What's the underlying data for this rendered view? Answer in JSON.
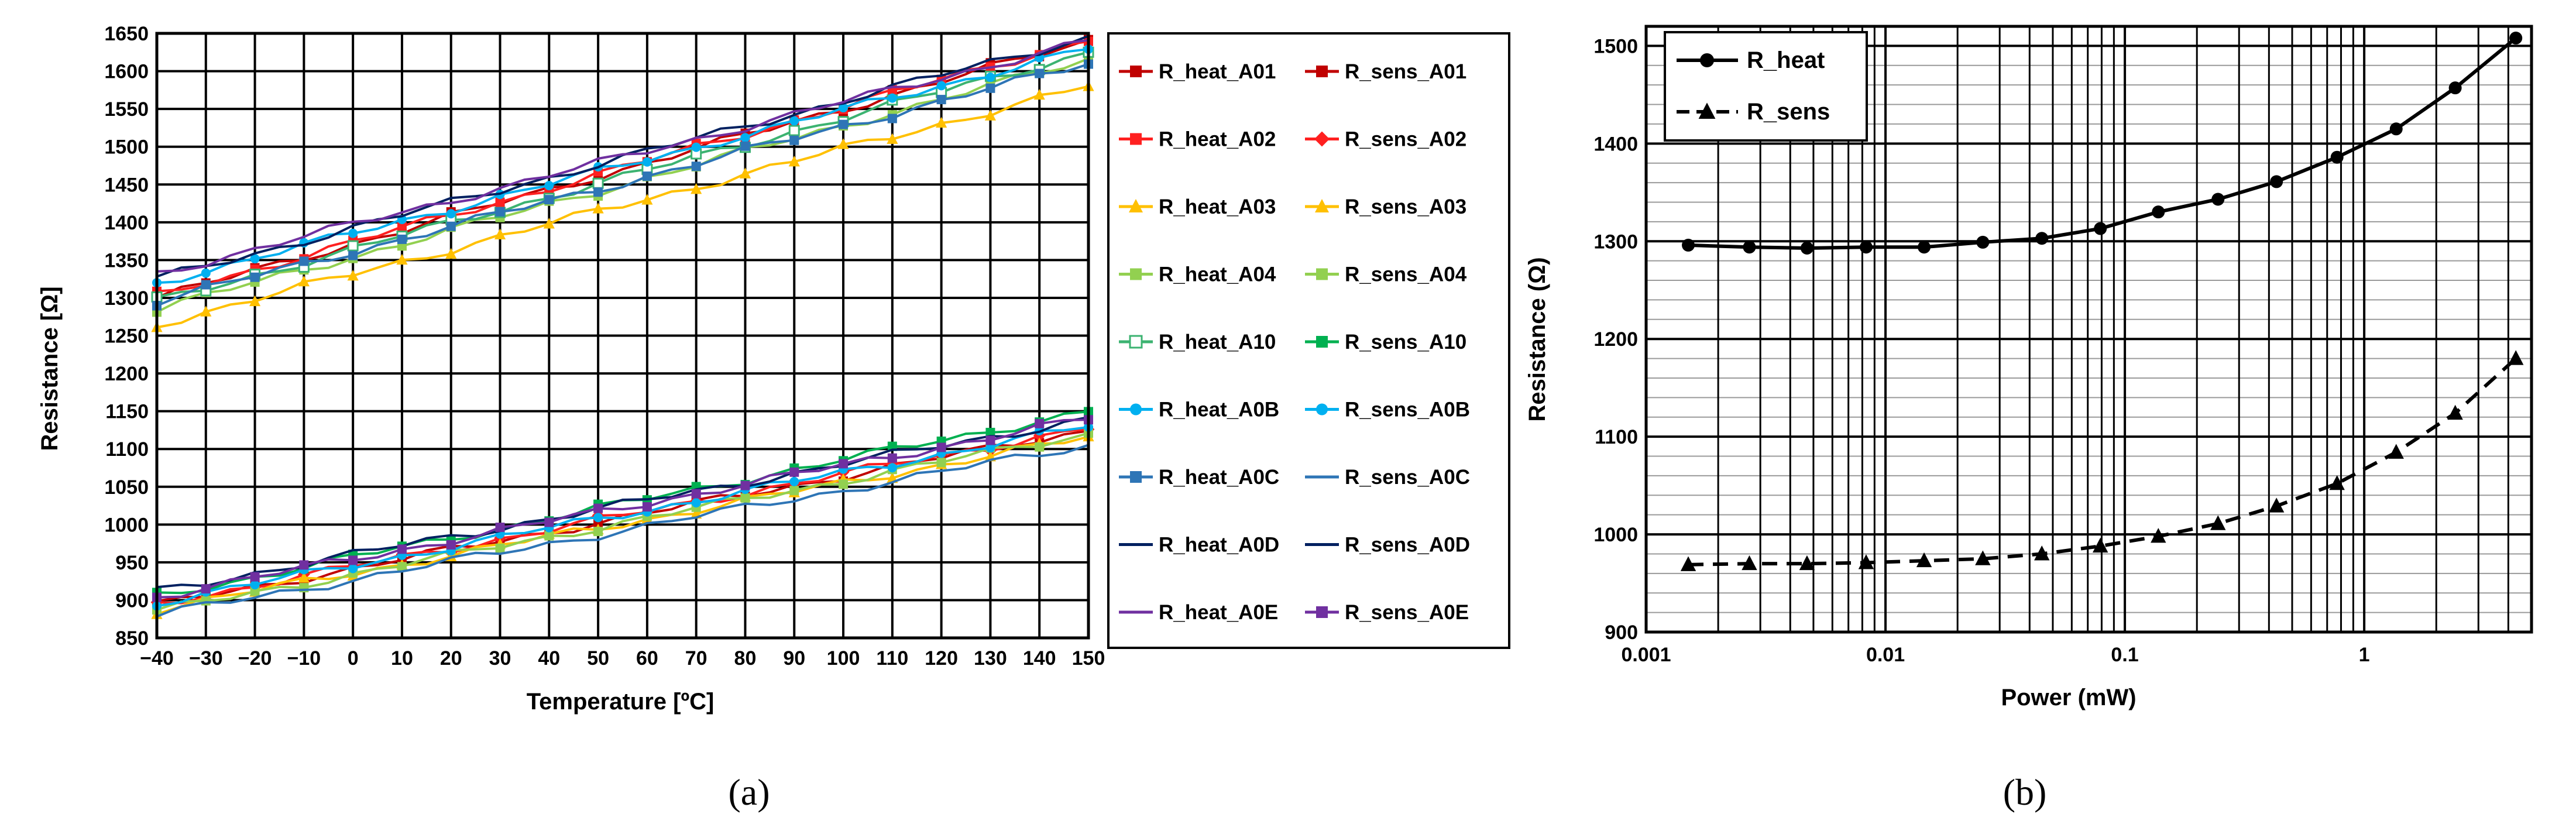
{
  "chart_data": [
    {
      "type": "line",
      "panel_label": "(a)",
      "xlabel": "Temperature [ºC]",
      "ylabel": "Resistance [Ω]",
      "xlim": [
        -40,
        150
      ],
      "ylim": [
        850,
        1650
      ],
      "xticks": [
        -40,
        -30,
        -20,
        -10,
        0,
        10,
        20,
        30,
        40,
        50,
        60,
        70,
        80,
        90,
        100,
        110,
        120,
        130,
        140,
        150
      ],
      "xtick_labels": [
        "−40",
        "−30",
        "−20",
        "−10",
        "0",
        "10",
        "20",
        "30",
        "40",
        "50",
        "60",
        "70",
        "80",
        "90",
        "100",
        "110",
        "120",
        "130",
        "140",
        "150"
      ],
      "yticks": [
        850,
        900,
        950,
        1000,
        1050,
        1100,
        1150,
        1200,
        1250,
        1300,
        1350,
        1400,
        1450,
        1500,
        1550,
        1600,
        1650
      ],
      "grid": true,
      "legend_position": "right",
      "series": [
        {
          "name": "R_heat_A01",
          "color": "#c00000",
          "marker": "square",
          "y_start": 1300,
          "y_end": 1640
        },
        {
          "name": "R_sens_A01",
          "color": "#c00000",
          "marker": "square",
          "y_start": 893,
          "y_end": 1125
        },
        {
          "name": "R_heat_A02",
          "color": "#ff2020",
          "marker": "square",
          "y_start": 1302,
          "y_end": 1642
        },
        {
          "name": "R_sens_A02",
          "color": "#ff2020",
          "marker": "diamond",
          "y_start": 895,
          "y_end": 1128
        },
        {
          "name": "R_heat_A03",
          "color": "#ffc000",
          "marker": "triangle",
          "y_start": 1265,
          "y_end": 1580
        },
        {
          "name": "R_sens_A03",
          "color": "#ffc000",
          "marker": "triangle",
          "y_start": 888,
          "y_end": 1115
        },
        {
          "name": "R_heat_A04",
          "color": "#92d050",
          "marker": "square",
          "y_start": 1285,
          "y_end": 1615
        },
        {
          "name": "R_sens_A04",
          "color": "#92d050",
          "marker": "square",
          "y_start": 885,
          "y_end": 1120
        },
        {
          "name": "R_heat_A10",
          "color": "#3cb371",
          "marker": "square-open",
          "y_start": 1295,
          "y_end": 1625
        },
        {
          "name": "R_sens_A10",
          "color": "#00b050",
          "marker": "square",
          "y_start": 905,
          "y_end": 1150
        },
        {
          "name": "R_heat_A0B",
          "color": "#00b0f0",
          "marker": "circle",
          "y_start": 1320,
          "y_end": 1630
        },
        {
          "name": "R_sens_A0B",
          "color": "#00b0f0",
          "marker": "circle",
          "y_start": 897,
          "y_end": 1130
        },
        {
          "name": "R_heat_A0C",
          "color": "#2e75b6",
          "marker": "square",
          "y_start": 1295,
          "y_end": 1610
        },
        {
          "name": "R_sens_A0C",
          "color": "#2e75b6",
          "marker": "none",
          "y_start": 880,
          "y_end": 1105
        },
        {
          "name": "R_heat_A0D",
          "color": "#002060",
          "marker": "none",
          "y_start": 1325,
          "y_end": 1645
        },
        {
          "name": "R_sens_A0D",
          "color": "#002060",
          "marker": "none",
          "y_start": 912,
          "y_end": 1140
        },
        {
          "name": "R_heat_A0E",
          "color": "#7030a0",
          "marker": "none",
          "y_start": 1332,
          "y_end": 1640
        },
        {
          "name": "R_sens_A0E",
          "color": "#7030a0",
          "marker": "square",
          "y_start": 905,
          "y_end": 1140
        }
      ]
    },
    {
      "type": "line",
      "panel_label": "(b)",
      "xlabel": "Power (mW)",
      "ylabel": "Resistance (Ω)",
      "xscale": "log",
      "xlim": [
        0.001,
        5
      ],
      "ylim": [
        900,
        1520
      ],
      "xticks": [
        0.001,
        0.01,
        0.1,
        1
      ],
      "xtick_labels": [
        "0.001",
        "0.01",
        "0.1",
        "1"
      ],
      "yticks": [
        900,
        1000,
        1100,
        1200,
        1300,
        1400,
        1500
      ],
      "grid": true,
      "legend_position": "top-left",
      "series": [
        {
          "name": "R_heat",
          "marker": "circle",
          "line": "solid",
          "x": [
            0.0015,
            0.0027,
            0.0047,
            0.0083,
            0.0145,
            0.0255,
            0.045,
            0.079,
            0.138,
            0.245,
            0.43,
            0.77,
            1.36,
            2.4,
            4.3
          ],
          "y": [
            1296,
            1294,
            1293,
            1294,
            1294,
            1299,
            1303,
            1313,
            1330,
            1343,
            1361,
            1386,
            1415,
            1457,
            1508
          ]
        },
        {
          "name": "R_sens",
          "marker": "triangle",
          "line": "dashed",
          "x": [
            0.0015,
            0.0027,
            0.0047,
            0.0083,
            0.0145,
            0.0255,
            0.045,
            0.079,
            0.138,
            0.245,
            0.43,
            0.77,
            1.36,
            2.4,
            4.3
          ],
          "y": [
            969,
            970,
            970,
            971,
            973,
            975,
            980,
            988,
            998,
            1011,
            1029,
            1052,
            1084,
            1124,
            1180
          ]
        }
      ]
    }
  ]
}
